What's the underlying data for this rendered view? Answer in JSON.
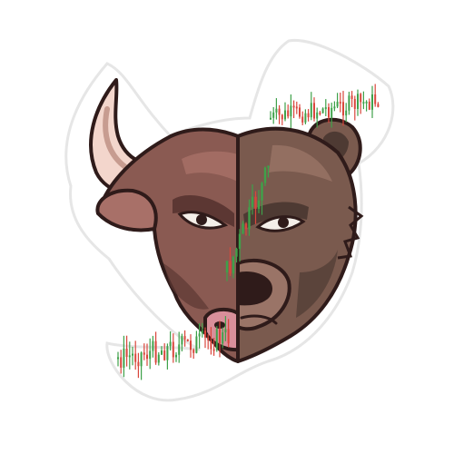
{
  "illustration": {
    "subject_left": "bull-head",
    "subject_right": "bear-head",
    "overlay": "candlestick-chart"
  },
  "colors": {
    "background": "#ffffff",
    "sticker_border": "#ffffff",
    "sticker_shadow": "#e6e6e6",
    "bull_fur": "#8a5a52",
    "bull_fur_light": "#a87068",
    "bull_fur_dark": "#5c3733",
    "horn": "#f3d6cc",
    "horn_shade": "#c79c90",
    "outline": "#2f1b1a",
    "muzzle_pink": "#d98f9a",
    "bear_fur": "#7a5a4e",
    "bear_fur_light": "#9a7467",
    "bear_fur_dark": "#4e3a33",
    "eye_white": "#f4efe9",
    "candle_up": "#3fa14a",
    "candle_down": "#d9463c"
  }
}
